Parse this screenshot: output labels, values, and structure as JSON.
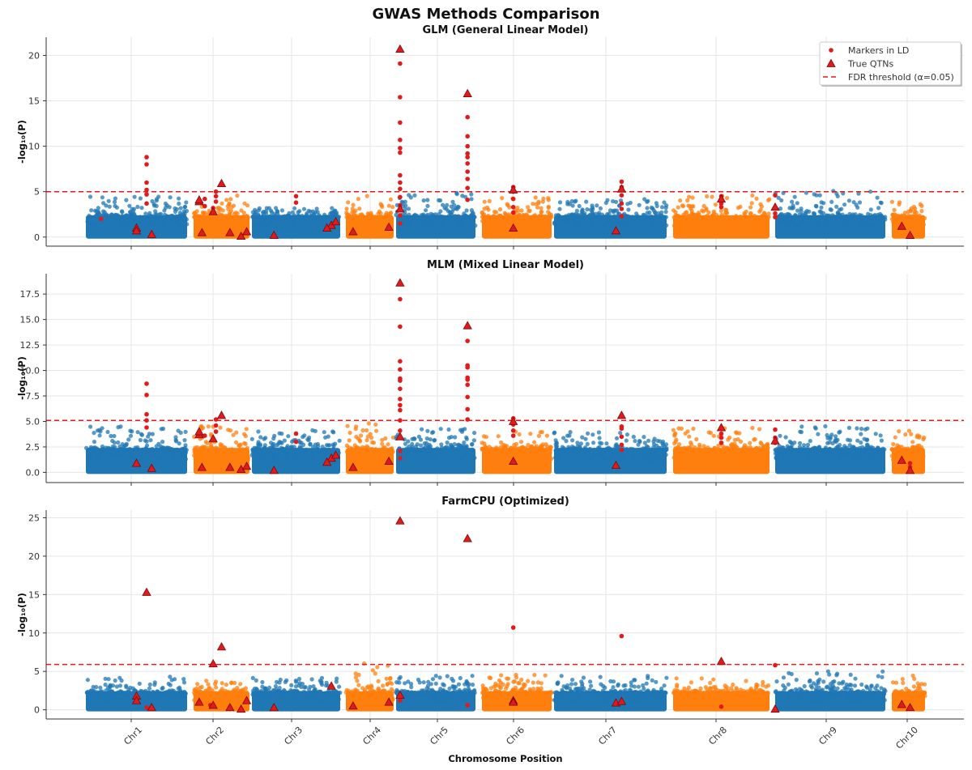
{
  "suptitle": "GWAS Methods Comparison",
  "colors": {
    "odd_chr": "#1f77b4",
    "even_chr": "#ff7f0e",
    "ld_marker": "#e31a1c",
    "qtn_fill": "#e31a1c",
    "qtn_edge": "#7a0a0a",
    "threshold": "#e31a1c"
  },
  "legend": {
    "position": "top-right",
    "entries": [
      {
        "label": "Markers in LD",
        "marker": "circle"
      },
      {
        "label": "True QTNs",
        "marker": "triangle"
      },
      {
        "label": "FDR threshold (α=0.05)",
        "marker": "dashed-line"
      }
    ]
  },
  "chart_data": [
    {
      "type": "scatter",
      "title": "GLM (General Linear Model)",
      "xlabel": "",
      "ylabel": "-log₁₀(P)",
      "ylim": [
        -1,
        22
      ],
      "yticks": [
        0,
        5,
        10,
        15,
        20
      ],
      "ytick_labels": [
        "0",
        "5",
        "10",
        "15",
        "20"
      ],
      "threshold": 5.0,
      "background_max": [
        4.5,
        4.8,
        3.2,
        4.8,
        4.9,
        4.5,
        4.2,
        4.6,
        5.1,
        4.2
      ],
      "chromosomes": [
        "Chr1",
        "Chr2",
        "Chr3",
        "Chr4",
        "Chr5",
        "Chr6",
        "Chr7",
        "Chr8",
        "Chr9",
        "Chr10"
      ],
      "ld_markers": [
        [
          0.6,
          8.8
        ],
        [
          0.6,
          8.0
        ],
        [
          0.6,
          6.0
        ],
        [
          0.6,
          5.2
        ],
        [
          0.6,
          4.7
        ],
        [
          0.6,
          3.7
        ],
        [
          1.2,
          4.2
        ],
        [
          1.2,
          3.4
        ],
        [
          1.4,
          5.0
        ],
        [
          1.4,
          4.5
        ],
        [
          1.4,
          3.9
        ],
        [
          1.35,
          3.2
        ],
        [
          0.15,
          2.0
        ],
        [
          2.5,
          4.5
        ],
        [
          2.5,
          3.8
        ],
        [
          4.05,
          19.1
        ],
        [
          4.05,
          15.4
        ],
        [
          4.05,
          12.6
        ],
        [
          4.05,
          10.7
        ],
        [
          4.05,
          9.8
        ],
        [
          4.05,
          9.3
        ],
        [
          4.05,
          6.8
        ],
        [
          4.05,
          6.0
        ],
        [
          4.05,
          5.3
        ],
        [
          4.05,
          4.4
        ],
        [
          4.05,
          3.5
        ],
        [
          4.05,
          2.4
        ],
        [
          4.05,
          1.5
        ],
        [
          4.9,
          13.2
        ],
        [
          4.9,
          11.1
        ],
        [
          4.9,
          10.0
        ],
        [
          4.9,
          9.2
        ],
        [
          4.9,
          8.8
        ],
        [
          4.9,
          8.1
        ],
        [
          4.9,
          7.2
        ],
        [
          4.9,
          6.4
        ],
        [
          4.9,
          5.4
        ],
        [
          4.9,
          4.1
        ],
        [
          5.45,
          5.5
        ],
        [
          5.45,
          5.0
        ],
        [
          5.45,
          4.2
        ],
        [
          5.45,
          3.3
        ],
        [
          5.45,
          2.7
        ],
        [
          6.6,
          6.1
        ],
        [
          6.6,
          5.5
        ],
        [
          6.6,
          4.6
        ],
        [
          6.6,
          3.7
        ],
        [
          6.6,
          3.1
        ],
        [
          6.6,
          2.3
        ],
        [
          7.5,
          4.5
        ],
        [
          7.5,
          3.7
        ],
        [
          7.5,
          3.3
        ],
        [
          8.0,
          4.6
        ],
        [
          8.0,
          2.6
        ],
        [
          8.0,
          2.2
        ]
      ],
      "qtns": [
        [
          0.5,
          1.0
        ],
        [
          0.65,
          0.3
        ],
        [
          1.1,
          3.9
        ],
        [
          1.1,
          4.1
        ],
        [
          0.5,
          0.7
        ],
        [
          1.35,
          2.8
        ],
        [
          1.5,
          5.9
        ],
        [
          1.15,
          0.5
        ],
        [
          1.65,
          0.5
        ],
        [
          1.85,
          0.1
        ],
        [
          1.95,
          0.6
        ],
        [
          2.25,
          0.2
        ],
        [
          2.9,
          1.3
        ],
        [
          2.95,
          1.7
        ],
        [
          2.85,
          1.0
        ],
        [
          3.15,
          0.6
        ],
        [
          3.9,
          1.1
        ],
        [
          4.05,
          20.7
        ],
        [
          4.05,
          3.1
        ],
        [
          4.9,
          15.8
        ],
        [
          5.45,
          5.2
        ],
        [
          5.45,
          1.0
        ],
        [
          6.55,
          0.7
        ],
        [
          6.6,
          5.3
        ],
        [
          7.5,
          4.2
        ],
        [
          8.0,
          3.3
        ],
        [
          9.3,
          1.2
        ],
        [
          9.55,
          0.2
        ]
      ]
    },
    {
      "type": "scatter",
      "title": "MLM (Mixed Linear Model)",
      "xlabel": "",
      "ylabel": "-log₁₀(P)",
      "ylim": [
        -1,
        19.5
      ],
      "yticks": [
        0.0,
        2.5,
        5.0,
        7.5,
        10.0,
        12.5,
        15.0,
        17.5
      ],
      "ytick_labels": [
        "0.0",
        "2.5",
        "5.0",
        "7.5",
        "10.0",
        "12.5",
        "15.0",
        "17.5"
      ],
      "threshold": 5.1,
      "background_max": [
        4.5,
        4.6,
        4.2,
        4.9,
        4.3,
        4.1,
        4.0,
        4.4,
        4.7,
        4.1
      ],
      "chromosomes": [
        "Chr1",
        "Chr2",
        "Chr3",
        "Chr4",
        "Chr5",
        "Chr6",
        "Chr7",
        "Chr8",
        "Chr9",
        "Chr10"
      ],
      "ld_markers": [
        [
          0.6,
          8.7
        ],
        [
          0.6,
          7.6
        ],
        [
          0.6,
          5.7
        ],
        [
          0.6,
          5.1
        ],
        [
          0.6,
          4.4
        ],
        [
          1.2,
          3.6
        ],
        [
          1.4,
          5.2
        ],
        [
          1.4,
          4.6
        ],
        [
          1.4,
          4.0
        ],
        [
          4.05,
          17.0
        ],
        [
          4.05,
          14.3
        ],
        [
          4.05,
          10.9
        ],
        [
          4.05,
          10.1
        ],
        [
          4.05,
          9.2
        ],
        [
          4.05,
          9.0
        ],
        [
          4.05,
          8.2
        ],
        [
          4.05,
          7.2
        ],
        [
          4.05,
          6.6
        ],
        [
          4.05,
          6.1
        ],
        [
          4.05,
          5.1
        ],
        [
          4.05,
          4.1
        ],
        [
          4.05,
          2.1
        ],
        [
          4.05,
          1.4
        ],
        [
          4.9,
          12.9
        ],
        [
          4.9,
          10.5
        ],
        [
          4.9,
          10.3
        ],
        [
          4.9,
          9.3
        ],
        [
          4.9,
          9.1
        ],
        [
          4.9,
          8.6
        ],
        [
          4.9,
          7.4
        ],
        [
          4.9,
          6.2
        ],
        [
          4.9,
          5.2
        ],
        [
          5.45,
          5.3
        ],
        [
          5.45,
          4.7
        ],
        [
          5.45,
          4.1
        ],
        [
          5.45,
          3.6
        ],
        [
          6.6,
          4.5
        ],
        [
          6.6,
          4.3
        ],
        [
          6.6,
          3.5
        ],
        [
          6.6,
          2.7
        ],
        [
          6.6,
          2.2
        ],
        [
          7.5,
          4.4
        ],
        [
          7.5,
          3.8
        ],
        [
          7.5,
          3.4
        ],
        [
          7.5,
          2.9
        ],
        [
          8.0,
          4.2
        ],
        [
          8.0,
          3.4
        ],
        [
          8.0,
          2.9
        ],
        [
          9.55,
          0.9
        ],
        [
          9.55,
          0.5
        ],
        [
          2.5,
          3.8
        ],
        [
          2.5,
          3.0
        ]
      ],
      "qtns": [
        [
          0.5,
          0.9
        ],
        [
          0.65,
          0.4
        ],
        [
          1.1,
          3.7
        ],
        [
          1.1,
          4.0
        ],
        [
          1.35,
          3.3
        ],
        [
          1.5,
          5.6
        ],
        [
          1.15,
          0.5
        ],
        [
          1.65,
          0.5
        ],
        [
          1.85,
          0.3
        ],
        [
          1.95,
          0.6
        ],
        [
          2.25,
          0.2
        ],
        [
          2.9,
          1.4
        ],
        [
          2.95,
          1.7
        ],
        [
          2.85,
          1.0
        ],
        [
          3.15,
          0.5
        ],
        [
          3.9,
          1.1
        ],
        [
          4.05,
          18.6
        ],
        [
          4.05,
          3.5
        ],
        [
          4.9,
          14.4
        ],
        [
          5.45,
          5.0
        ],
        [
          5.45,
          1.1
        ],
        [
          6.55,
          0.7
        ],
        [
          6.6,
          5.6
        ],
        [
          7.5,
          4.4
        ],
        [
          8.0,
          3.1
        ],
        [
          9.3,
          1.2
        ],
        [
          9.55,
          0.2
        ]
      ]
    },
    {
      "type": "scatter",
      "title": "FarmCPU (Optimized)",
      "xlabel": "Chromosome Position",
      "ylabel": "-log₁₀(P)",
      "ylim": [
        -1.2,
        26
      ],
      "yticks": [
        0,
        5,
        10,
        15,
        20,
        25
      ],
      "ytick_labels": [
        "0",
        "5",
        "10",
        "15",
        "20",
        "25"
      ],
      "threshold": 5.9,
      "background_max": [
        4.3,
        4.0,
        4.2,
        6.1,
        4.5,
        4.6,
        4.6,
        4.2,
        5.0,
        4.5
      ],
      "chromosomes": [
        "Chr1",
        "Chr2",
        "Chr3",
        "Chr4",
        "Chr5",
        "Chr6",
        "Chr7",
        "Chr8",
        "Chr9",
        "Chr10"
      ],
      "ld_markers": [
        [
          5.45,
          10.7
        ],
        [
          6.6,
          9.6
        ],
        [
          8.0,
          5.8
        ],
        [
          0.6,
          0.3
        ],
        [
          1.3,
          0.6
        ],
        [
          4.05,
          1.2
        ],
        [
          4.9,
          0.6
        ],
        [
          7.5,
          0.4
        ]
      ],
      "qtns": [
        [
          0.5,
          1.8
        ],
        [
          0.5,
          1.2
        ],
        [
          0.65,
          0.3
        ],
        [
          1.1,
          1.0
        ],
        [
          0.6,
          15.3
        ],
        [
          1.35,
          6.0
        ],
        [
          1.5,
          8.2
        ],
        [
          1.35,
          0.6
        ],
        [
          1.65,
          0.3
        ],
        [
          1.85,
          0.1
        ],
        [
          1.95,
          1.2
        ],
        [
          2.25,
          0.3
        ],
        [
          2.9,
          3.1
        ],
        [
          3.15,
          0.5
        ],
        [
          3.9,
          1.0
        ],
        [
          4.05,
          24.6
        ],
        [
          4.05,
          1.9
        ],
        [
          4.9,
          22.3
        ],
        [
          5.45,
          1.2
        ],
        [
          5.45,
          1.0
        ],
        [
          6.55,
          0.9
        ],
        [
          6.6,
          1.1
        ],
        [
          7.5,
          6.3
        ],
        [
          8.0,
          0.1
        ],
        [
          9.3,
          0.7
        ],
        [
          9.55,
          0.3
        ]
      ]
    }
  ]
}
